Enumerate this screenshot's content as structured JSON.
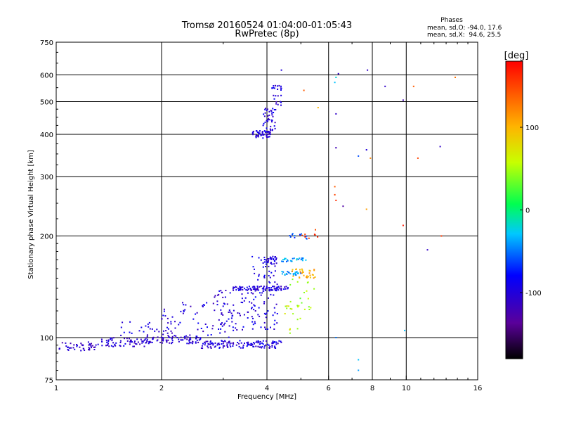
{
  "chart_data": {
    "type": "scatter",
    "title": "Tromsø 20160524 01:04:00-01:05:43",
    "subtitle": "RwPretec (8p)",
    "xlabel": "Frequency [MHz]",
    "ylabel": "Stationary phase Virtual Height [km]",
    "x_scale": "log",
    "y_scale": "log",
    "xlim": [
      1,
      16
    ],
    "ylim": [
      75,
      750
    ],
    "x_ticks": [
      1,
      2,
      4,
      6,
      8,
      10,
      16
    ],
    "y_ticks": [
      75,
      100,
      200,
      300,
      400,
      500,
      600,
      750
    ],
    "grid": true,
    "phases_box": {
      "title": "Phases",
      "line1": "mean, sd,O: -94.0, 17.6",
      "line2": "mean, sd,X:  94.6, 25.5"
    },
    "colorbar": {
      "label": "[deg]",
      "range": [
        -180,
        180
      ],
      "ticks": [
        "100",
        "0",
        "-100"
      ],
      "tick_values": [
        100,
        0,
        -100
      ]
    },
    "point_groups": [
      {
        "x": [
          1.02,
          1.3
        ],
        "y": [
          91,
          97
        ],
        "n": 45,
        "phase": -110
      },
      {
        "x": [
          1.3,
          1.8
        ],
        "y": [
          94,
          100
        ],
        "n": 60,
        "phase": -105
      },
      {
        "x": [
          1.8,
          2.6
        ],
        "y": [
          96,
          101
        ],
        "n": 80,
        "phase": -105
      },
      {
        "x": [
          2.6,
          4.4
        ],
        "y": [
          93,
          98
        ],
        "n": 130,
        "phase": -100
      },
      {
        "x": [
          1.5,
          2.2
        ],
        "y": [
          99,
          112
        ],
        "n": 30,
        "phase": -100
      },
      {
        "x": [
          2.0,
          3.3
        ],
        "y": [
          100,
          128
        ],
        "n": 70,
        "phase": -100
      },
      {
        "x": [
          2.8,
          3.7
        ],
        "y": [
          105,
          140
        ],
        "n": 55,
        "phase": -100
      },
      {
        "x": [
          3.2,
          4.6
        ],
        "y": [
          138,
          142
        ],
        "n": 90,
        "phase": -100
      },
      {
        "x": [
          3.6,
          4.3
        ],
        "y": [
          105,
          175
        ],
        "n": 90,
        "phase": -95
      },
      {
        "x": [
          3.9,
          4.3
        ],
        "y": [
          165,
          175
        ],
        "n": 25,
        "phase": -95
      },
      {
        "x": [
          4.4,
          5.0
        ],
        "y": [
          153,
          157
        ],
        "n": 25,
        "phase": -40
      },
      {
        "x": [
          4.4,
          5.3
        ],
        "y": [
          168,
          172
        ],
        "n": 25,
        "phase": -40
      },
      {
        "x": [
          4.7,
          5.5
        ],
        "y": [
          150,
          160
        ],
        "n": 30,
        "phase": 105
      },
      {
        "x": [
          4.6,
          5.5
        ],
        "y": [
          120,
          150
        ],
        "n": 18,
        "phase": 40
      },
      {
        "x": [
          4.5,
          5.0
        ],
        "y": [
          100,
          125
        ],
        "n": 15,
        "phase": 60
      },
      {
        "x": [
          4.6,
          5.2
        ],
        "y": [
          195,
          205
        ],
        "n": 12,
        "phase": -60
      },
      {
        "x": [
          5.0,
          5.6
        ],
        "y": [
          195,
          210
        ],
        "n": 8,
        "phase": 150
      },
      {
        "x": [
          3.6,
          4.1
        ],
        "y": [
          390,
          410
        ],
        "n": 55,
        "phase": -100
      },
      {
        "x": [
          3.9,
          4.25
        ],
        "y": [
          410,
          480
        ],
        "n": 40,
        "phase": -100
      },
      {
        "x": [
          4.1,
          4.4
        ],
        "y": [
          480,
          560
        ],
        "n": 25,
        "phase": -100
      }
    ],
    "isolated_points": [
      {
        "x": 4.4,
        "y": 620,
        "phase": -100
      },
      {
        "x": 5.1,
        "y": 540,
        "phase": 140
      },
      {
        "x": 5.6,
        "y": 480,
        "phase": 100
      },
      {
        "x": 6.3,
        "y": 590,
        "phase": -20
      },
      {
        "x": 6.4,
        "y": 605,
        "phase": -110
      },
      {
        "x": 6.25,
        "y": 570,
        "phase": -30
      },
      {
        "x": 6.3,
        "y": 460,
        "phase": -110
      },
      {
        "x": 6.3,
        "y": 365,
        "phase": -120
      },
      {
        "x": 6.25,
        "y": 280,
        "phase": 140
      },
      {
        "x": 6.25,
        "y": 265,
        "phase": 150
      },
      {
        "x": 6.3,
        "y": 255,
        "phase": 160
      },
      {
        "x": 6.6,
        "y": 245,
        "phase": -130
      },
      {
        "x": 7.3,
        "y": 345,
        "phase": -60
      },
      {
        "x": 7.7,
        "y": 360,
        "phase": -100
      },
      {
        "x": 7.75,
        "y": 620,
        "phase": -110
      },
      {
        "x": 7.7,
        "y": 240,
        "phase": 110
      },
      {
        "x": 7.9,
        "y": 340,
        "phase": 120
      },
      {
        "x": 8.7,
        "y": 555,
        "phase": -110
      },
      {
        "x": 9.8,
        "y": 505,
        "phase": -120
      },
      {
        "x": 9.8,
        "y": 215,
        "phase": 170
      },
      {
        "x": 10.5,
        "y": 555,
        "phase": 140
      },
      {
        "x": 10.8,
        "y": 340,
        "phase": 150
      },
      {
        "x": 11.5,
        "y": 182,
        "phase": -110
      },
      {
        "x": 12.5,
        "y": 368,
        "phase": -110
      },
      {
        "x": 12.6,
        "y": 200,
        "phase": 155
      },
      {
        "x": 13.8,
        "y": 590,
        "phase": 130
      },
      {
        "x": 9.9,
        "y": 105,
        "phase": -30
      },
      {
        "x": 6.3,
        "y": 100,
        "phase": -50
      },
      {
        "x": 7.3,
        "y": 86,
        "phase": -30
      },
      {
        "x": 7.3,
        "y": 80,
        "phase": -40
      }
    ]
  }
}
